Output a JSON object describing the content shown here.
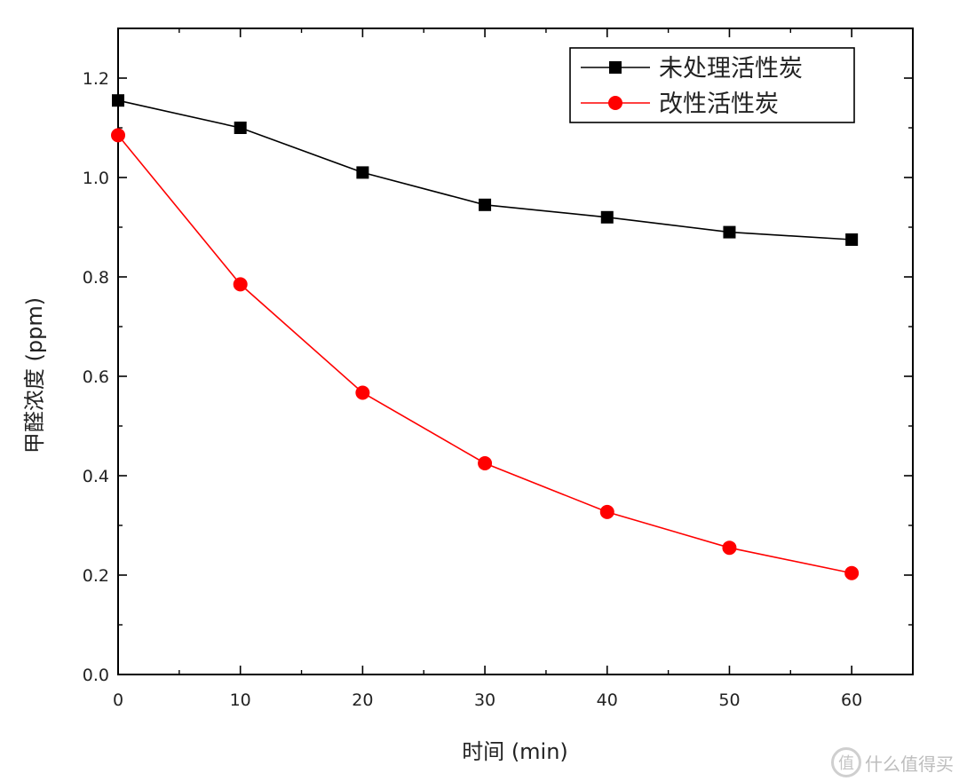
{
  "chart_data": {
    "type": "line",
    "title": "",
    "xlabel": "时间 (min)",
    "ylabel": "甲醛浓度 (ppm)",
    "xlim": [
      0,
      65
    ],
    "ylim": [
      0.0,
      1.3
    ],
    "xticks": [
      0,
      10,
      20,
      30,
      40,
      50,
      60
    ],
    "xtick_labels": [
      "0",
      "10",
      "20",
      "30",
      "40",
      "50",
      "60"
    ],
    "yticks": [
      0.0,
      0.2,
      0.4,
      0.6,
      0.8,
      1.0,
      1.2
    ],
    "ytick_labels": [
      "0.0",
      "0.2",
      "0.4",
      "0.6",
      "0.8",
      "1.0",
      "1.2"
    ],
    "grid": false,
    "legend_position": "top-right",
    "x": [
      0,
      10,
      20,
      30,
      40,
      50,
      60
    ],
    "series": [
      {
        "name": "未处理活性炭",
        "color": "#000000",
        "marker": "square",
        "values": [
          1.155,
          1.1,
          1.01,
          0.945,
          0.92,
          0.89,
          0.875
        ]
      },
      {
        "name": "改性活性炭",
        "color": "#ff0000",
        "marker": "circle",
        "values": [
          1.085,
          0.785,
          0.567,
          0.425,
          0.327,
          0.255,
          0.204
        ]
      }
    ]
  },
  "watermark": {
    "icon": "zhidemai-logo-icon",
    "text": "什么值得买"
  }
}
